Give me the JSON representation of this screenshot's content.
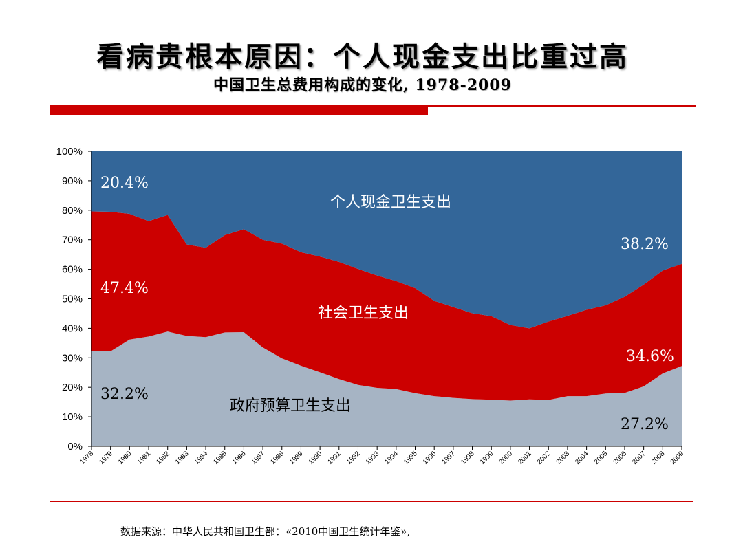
{
  "header": {
    "title": "看病贵根本原因：个人现金支出比重过高",
    "subtitle": "中国卫生总费用构成的变化, 1978-2009"
  },
  "footer": {
    "source": "数据来源：中华人民共和国卫生部：«2010中国卫生统计年鉴»,"
  },
  "chart_data": {
    "type": "area",
    "stacked": true,
    "percent": true,
    "ylim": [
      0,
      100
    ],
    "yticks": [
      "0%",
      "10%",
      "20%",
      "30%",
      "40%",
      "50%",
      "60%",
      "70%",
      "80%",
      "90%",
      "100%"
    ],
    "x": [
      "1978",
      "1979",
      "1980",
      "1981",
      "1982",
      "1983",
      "1984",
      "1985",
      "1986",
      "1987",
      "1988",
      "1989",
      "1990",
      "1991",
      "1992",
      "1993",
      "1994",
      "1995",
      "1996",
      "1997",
      "1998",
      "1999",
      "2000",
      "2001",
      "2002",
      "2003",
      "2004",
      "2005",
      "2006",
      "2007",
      "2008",
      "2009"
    ],
    "series": [
      {
        "name": "政府预算卫生支出",
        "color": "#a6b4c4",
        "values": [
          32.2,
          32.2,
          36.2,
          37.2,
          38.9,
          37.4,
          37.0,
          38.6,
          38.7,
          33.5,
          29.8,
          27.3,
          25.1,
          22.8,
          20.8,
          19.8,
          19.4,
          18.0,
          17.0,
          16.4,
          16.0,
          15.8,
          15.5,
          15.9,
          15.7,
          17.0,
          17.0,
          17.9,
          18.1,
          20.3,
          24.7,
          27.2
        ]
      },
      {
        "name": "社会卫生支出",
        "color": "#cc0000",
        "values": [
          47.4,
          47.3,
          42.6,
          39.1,
          39.5,
          31.0,
          30.3,
          33.0,
          34.9,
          36.5,
          38.9,
          38.5,
          39.2,
          39.7,
          39.3,
          38.1,
          36.6,
          35.6,
          32.3,
          30.8,
          29.1,
          28.3,
          25.6,
          24.1,
          26.6,
          27.2,
          29.3,
          29.9,
          32.6,
          34.5,
          34.9,
          34.6
        ]
      },
      {
        "name": "个人现金卫生支出",
        "color": "#336699",
        "values": [
          20.4,
          20.5,
          21.2,
          23.7,
          21.6,
          31.6,
          32.7,
          28.4,
          26.4,
          30.0,
          31.3,
          34.2,
          35.7,
          37.5,
          39.9,
          42.1,
          44.0,
          46.4,
          50.7,
          52.8,
          54.9,
          55.9,
          58.9,
          60.0,
          57.7,
          55.8,
          53.7,
          52.2,
          49.3,
          45.2,
          40.4,
          38.2
        ]
      }
    ],
    "annotations": {
      "oop_1978": "20.4%",
      "oop_2009": "38.2%",
      "social_1978": "47.4%",
      "social_2009": "34.6%",
      "gov_1978": "32.2%",
      "gov_2009": "27.2%",
      "oop_label": "个人现金卫生支出",
      "social_label": "社会卫生支出",
      "gov_label": "政府预算卫生支出"
    }
  }
}
